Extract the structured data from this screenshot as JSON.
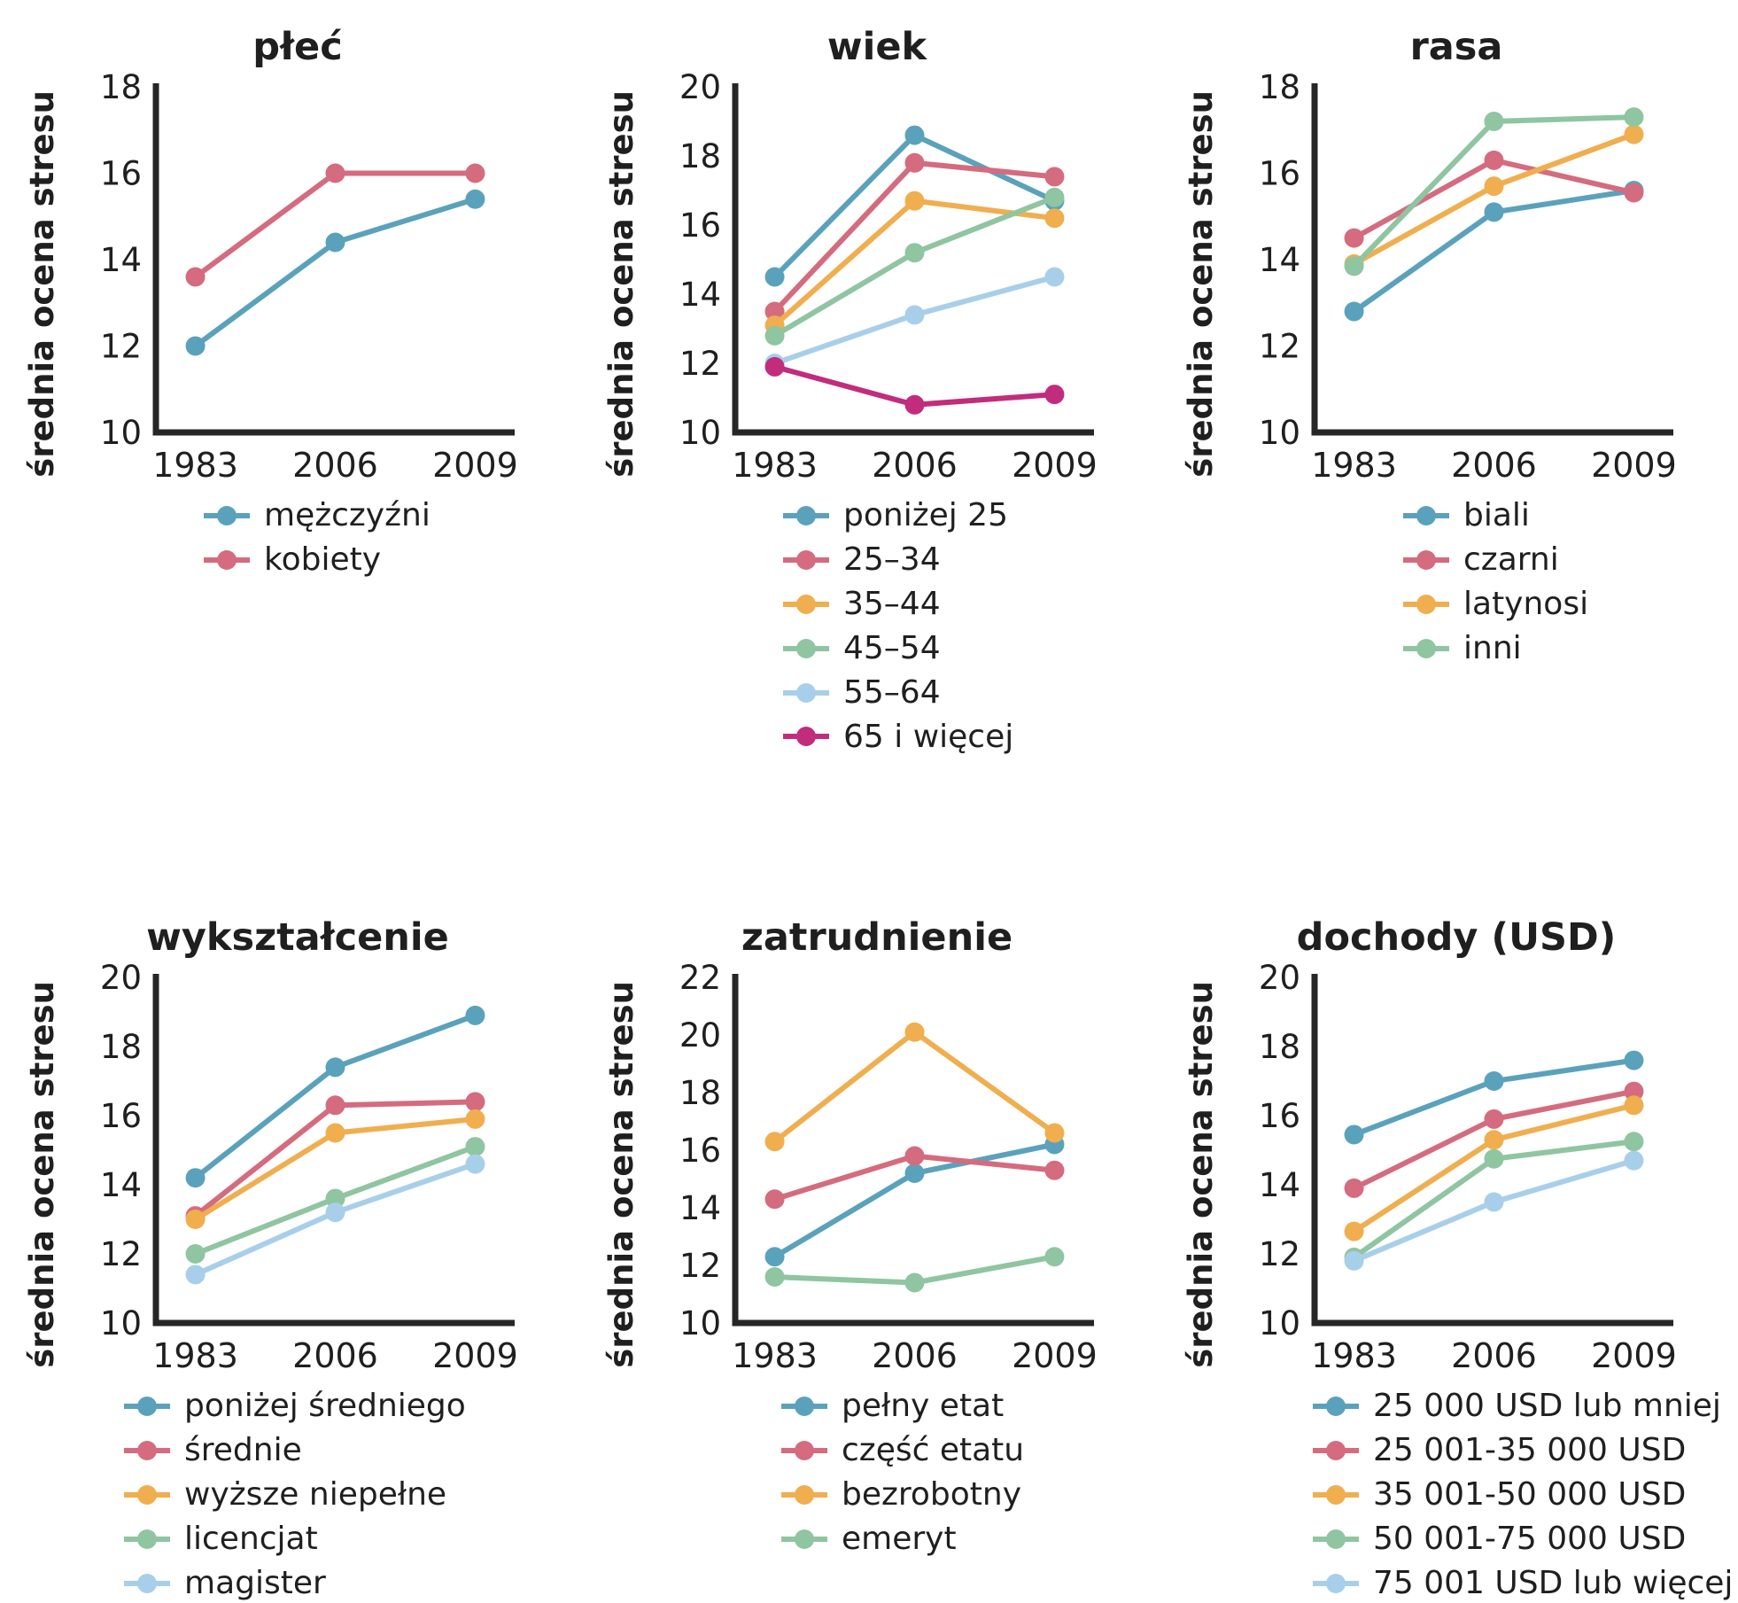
{
  "figure": {
    "background": "#ffffff",
    "text_color": "#1f1f1f",
    "spine_color": "#262626",
    "x_categories": [
      "1983",
      "2006",
      "2009"
    ]
  },
  "chart_data": [
    {
      "type": "line",
      "title": "płeć",
      "ylabel": "średnia ocena stresu",
      "categories": [
        "1983",
        "2006",
        "2009"
      ],
      "ylim": [
        10,
        18
      ],
      "yticks": [
        10,
        12,
        14,
        16,
        18
      ],
      "legend_position": "bottom",
      "series": [
        {
          "name": "mężczyźni",
          "color": "#5AA2BC",
          "values": [
            12.0,
            14.4,
            15.4
          ]
        },
        {
          "name": "kobiety",
          "color": "#D56B7E",
          "values": [
            13.6,
            16.0,
            16.0
          ]
        }
      ]
    },
    {
      "type": "line",
      "title": "wiek",
      "ylabel": "średnia ocena stresu",
      "categories": [
        "1983",
        "2006",
        "2009"
      ],
      "ylim": [
        10,
        20
      ],
      "yticks": [
        10,
        12,
        14,
        16,
        18,
        20
      ],
      "legend_position": "bottom",
      "series": [
        {
          "name": "poniżej 25",
          "color": "#5AA2BC",
          "values": [
            14.5,
            18.6,
            16.7
          ]
        },
        {
          "name": "25–34",
          "color": "#D56B7E",
          "values": [
            13.5,
            17.8,
            17.4
          ]
        },
        {
          "name": "35–44",
          "color": "#F0AE4F",
          "values": [
            13.1,
            16.7,
            16.2
          ]
        },
        {
          "name": "45–54",
          "color": "#8FC5A1",
          "values": [
            12.8,
            15.2,
            16.8
          ]
        },
        {
          "name": "55–64",
          "color": "#A8CFEA",
          "values": [
            12.0,
            13.4,
            14.5
          ]
        },
        {
          "name": "65 i więcej",
          "color": "#C22C7D",
          "values": [
            11.9,
            10.8,
            11.1
          ]
        }
      ]
    },
    {
      "type": "line",
      "title": "rasa",
      "ylabel": "średnia ocena stresu",
      "categories": [
        "1983",
        "2006",
        "2009"
      ],
      "ylim": [
        10,
        18
      ],
      "yticks": [
        10,
        12,
        14,
        16,
        18
      ],
      "legend_position": "bottom",
      "series": [
        {
          "name": "biali",
          "color": "#5AA2BC",
          "values": [
            12.8,
            15.1,
            15.6
          ]
        },
        {
          "name": "czarni",
          "color": "#D56B7E",
          "values": [
            14.5,
            16.3,
            15.55
          ]
        },
        {
          "name": "latynosi",
          "color": "#F0AE4F",
          "values": [
            13.9,
            15.7,
            16.9
          ]
        },
        {
          "name": "inni",
          "color": "#8FC5A1",
          "values": [
            13.85,
            17.2,
            17.3
          ]
        }
      ]
    },
    {
      "type": "line",
      "title": "wykształcenie",
      "ylabel": "średnia ocena stresu",
      "categories": [
        "1983",
        "2006",
        "2009"
      ],
      "ylim": [
        10,
        20
      ],
      "yticks": [
        10,
        12,
        14,
        16,
        18,
        20
      ],
      "legend_position": "bottom",
      "series": [
        {
          "name": "poniżej średniego",
          "color": "#5AA2BC",
          "values": [
            14.2,
            17.4,
            18.9
          ]
        },
        {
          "name": "średnie",
          "color": "#D56B7E",
          "values": [
            13.1,
            16.3,
            16.4
          ]
        },
        {
          "name": "wyższe niepełne",
          "color": "#F0AE4F",
          "values": [
            13.0,
            15.5,
            15.9
          ]
        },
        {
          "name": "licencjat",
          "color": "#8FC5A1",
          "values": [
            12.0,
            13.6,
            15.1
          ]
        },
        {
          "name": "magister",
          "color": "#A8CFEA",
          "values": [
            11.4,
            13.2,
            14.6
          ]
        }
      ]
    },
    {
      "type": "line",
      "title": "zatrudnienie",
      "ylabel": "średnia ocena stresu",
      "categories": [
        "1983",
        "2006",
        "2009"
      ],
      "ylim": [
        10,
        22
      ],
      "yticks": [
        10,
        12,
        14,
        16,
        18,
        20,
        22
      ],
      "legend_position": "bottom",
      "series": [
        {
          "name": "pełny etat",
          "color": "#5AA2BC",
          "values": [
            12.3,
            15.2,
            16.2
          ]
        },
        {
          "name": "część etatu",
          "color": "#D56B7E",
          "values": [
            14.3,
            15.8,
            15.3
          ]
        },
        {
          "name": "bezrobotny",
          "color": "#F0AE4F",
          "values": [
            16.3,
            20.1,
            16.6
          ]
        },
        {
          "name": "emeryt",
          "color": "#8FC5A1",
          "values": [
            11.6,
            11.4,
            12.3
          ]
        }
      ]
    },
    {
      "type": "line",
      "title": "dochody (USD)",
      "ylabel": "średnia ocena stresu",
      "categories": [
        "1983",
        "2006",
        "2009"
      ],
      "ylim": [
        10,
        20
      ],
      "yticks": [
        10,
        12,
        14,
        16,
        18,
        20
      ],
      "legend_position": "bottom",
      "series": [
        {
          "name": "25 000 USD lub mniej",
          "color": "#5AA2BC",
          "values": [
            15.45,
            17.0,
            17.6
          ]
        },
        {
          "name": "25 001-35 000 USD",
          "color": "#D56B7E",
          "values": [
            13.9,
            15.9,
            16.7
          ]
        },
        {
          "name": "35 001-50 000 USD",
          "color": "#F0AE4F",
          "values": [
            12.65,
            15.3,
            16.3
          ]
        },
        {
          "name": "50 001-75 000 USD",
          "color": "#8FC5A1",
          "values": [
            11.9,
            14.75,
            15.25
          ]
        },
        {
          "name": "75 001 USD lub więcej",
          "color": "#A8CFEA",
          "values": [
            11.8,
            13.5,
            14.7
          ]
        }
      ]
    }
  ]
}
